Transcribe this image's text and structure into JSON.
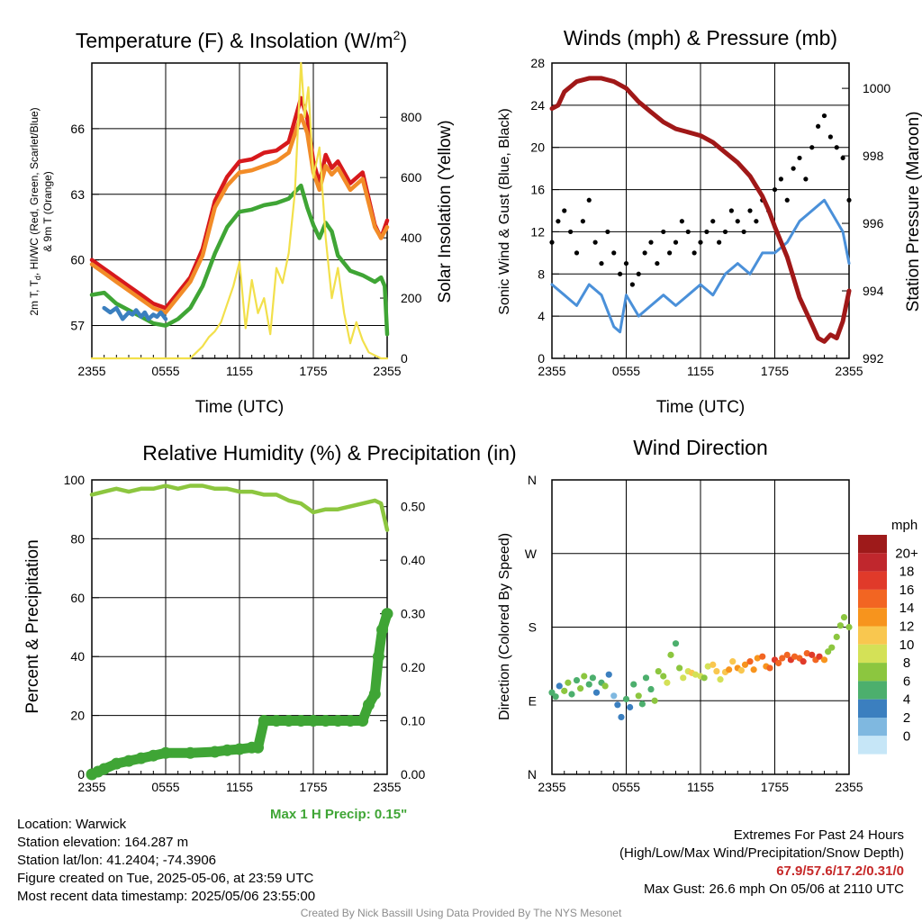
{
  "chart_data": [
    {
      "type": "line",
      "title": "Temperature (F) & Insolation (W/m",
      "title_sup": "2",
      "title_close": ")",
      "xlabel": "Time (UTC)",
      "ylabel_lines": [
        "2m T, T",
        "d",
        ", HI/WC (Red, Green, Scarlet/Blue)",
        "& 9m T (Orange)"
      ],
      "y2label": "Solar Insolation (Yellow)",
      "x_ticks": [
        "2355",
        "0555",
        "1155",
        "1755",
        "2355"
      ],
      "y_ticks": [
        57,
        60,
        63,
        66
      ],
      "ylim": [
        55.5,
        69.0
      ],
      "y2_ticks": [
        0,
        200,
        400,
        600,
        800
      ],
      "y2lim": [
        0,
        980
      ],
      "grid": true,
      "series": [
        {
          "name": "2m T",
          "color": "#d7191c",
          "axis": "left",
          "x": [
            0,
            1,
            2,
            3,
            4,
            5,
            6,
            7,
            8,
            9,
            10,
            11,
            12,
            13,
            14,
            15,
            16,
            17,
            17.5,
            18,
            18.5,
            19,
            19.5,
            20,
            21,
            22,
            23,
            23.5,
            24
          ],
          "values": [
            60.0,
            59.6,
            59.2,
            58.8,
            58.4,
            58.0,
            57.8,
            58.5,
            59.2,
            60.5,
            62.7,
            63.8,
            64.5,
            64.6,
            64.9,
            65.0,
            65.4,
            67.4,
            66.5,
            64.5,
            63.5,
            64.8,
            64.2,
            64.5,
            63.5,
            64.0,
            61.6,
            61.0,
            61.8
          ]
        },
        {
          "name": "9m T",
          "color": "#f28c28",
          "axis": "left",
          "x": [
            0,
            1,
            2,
            3,
            4,
            5,
            6,
            7,
            8,
            9,
            10,
            11,
            12,
            13,
            14,
            15,
            16,
            17,
            17.5,
            18,
            18.5,
            19,
            19.5,
            20,
            21,
            22,
            23,
            23.5,
            24
          ],
          "values": [
            59.8,
            59.4,
            59.0,
            58.6,
            58.2,
            57.8,
            57.6,
            58.3,
            59.0,
            60.2,
            62.4,
            63.4,
            64.0,
            64.1,
            64.3,
            64.5,
            64.9,
            66.6,
            65.8,
            64.0,
            63.2,
            64.3,
            63.9,
            64.2,
            63.2,
            63.7,
            61.5,
            61.0,
            61.5
          ]
        },
        {
          "name": "Td",
          "color": "#3fa535",
          "axis": "left",
          "x": [
            0,
            1,
            2,
            3,
            4,
            5,
            6,
            7,
            8,
            9,
            10,
            11,
            12,
            13,
            14,
            15,
            16,
            17,
            17.5,
            18,
            18.5,
            19,
            19.5,
            20,
            21,
            22,
            23,
            23.5,
            23.8,
            24
          ],
          "values": [
            58.4,
            58.5,
            58.0,
            57.7,
            57.4,
            57.1,
            57.0,
            57.3,
            57.8,
            58.8,
            60.3,
            61.5,
            62.2,
            62.3,
            62.5,
            62.6,
            62.8,
            63.4,
            62.4,
            61.6,
            61.0,
            61.7,
            61.3,
            60.2,
            59.5,
            59.3,
            59.0,
            59.2,
            58.8,
            56.6
          ]
        },
        {
          "name": "HI/WC",
          "color": "#3b7fbf",
          "axis": "left",
          "x": [
            1,
            1.5,
            2,
            2.5,
            3,
            3.3,
            3.6,
            4,
            4.3,
            4.6,
            5,
            5.3,
            5.6,
            6
          ],
          "values": [
            57.8,
            57.6,
            57.8,
            57.3,
            57.6,
            57.5,
            57.7,
            57.4,
            57.6,
            57.3,
            57.5,
            57.4,
            57.6,
            57.3
          ]
        },
        {
          "name": "Solar Insolation",
          "color": "#f2e04b",
          "axis": "right",
          "x": [
            0,
            8.0,
            8.5,
            9.0,
            9.5,
            10,
            10.5,
            11,
            11.5,
            12,
            12.5,
            13,
            13.5,
            14,
            14.5,
            15,
            15.5,
            16,
            16.5,
            17,
            17.3,
            17.6,
            18,
            18.5,
            19,
            19.5,
            20,
            20.5,
            21,
            21.5,
            22,
            22.5,
            23,
            23.5,
            24
          ],
          "values": [
            0,
            0,
            20,
            40,
            70,
            90,
            120,
            180,
            240,
            320,
            100,
            260,
            150,
            200,
            80,
            300,
            250,
            350,
            550,
            980,
            800,
            900,
            600,
            700,
            400,
            200,
            300,
            150,
            50,
            120,
            60,
            20,
            10,
            0,
            0
          ]
        }
      ]
    },
    {
      "type": "line",
      "title": "Winds (mph) & Pressure (mb)",
      "xlabel": "Time (UTC)",
      "ylabel": "Sonic Wind & Gust (Blue, Black)",
      "y2label": "Station Pressure (Maroon)",
      "x_ticks": [
        "2355",
        "0555",
        "1155",
        "1755",
        "2355"
      ],
      "y_ticks": [
        0,
        4,
        8,
        12,
        16,
        20,
        24,
        28
      ],
      "ylim": [
        0,
        28
      ],
      "y2_ticks": [
        992,
        994,
        996,
        998,
        1000
      ],
      "y2lim": [
        992,
        1000.75
      ],
      "grid": true,
      "series": [
        {
          "name": "Sonic Wind",
          "color": "#4a90d9",
          "axis": "left",
          "x": [
            0,
            1,
            2,
            3,
            4,
            5,
            5.5,
            6,
            7,
            8,
            9,
            10,
            11,
            12,
            13,
            14,
            15,
            16,
            17,
            18,
            19,
            20,
            21,
            22,
            23,
            23.5,
            24
          ],
          "values": [
            7,
            6,
            5,
            7,
            6,
            3,
            2.5,
            6,
            4,
            5,
            6,
            5,
            6,
            7,
            6,
            8,
            9,
            8,
            10,
            10,
            11,
            13,
            14,
            15,
            13,
            12,
            9
          ]
        },
        {
          "name": "Gust",
          "color": "#000000",
          "axis": "left",
          "x": [
            0,
            0.5,
            1,
            1.5,
            2,
            2.5,
            3,
            3.5,
            4,
            4.5,
            5,
            5.5,
            6,
            6.5,
            7,
            7.5,
            8,
            8.5,
            9,
            9.5,
            10,
            10.5,
            11,
            11.5,
            12,
            12.5,
            13,
            13.5,
            14,
            14.5,
            15,
            15.5,
            16,
            16.5,
            17,
            17.5,
            18,
            18.5,
            19,
            19.5,
            20,
            20.5,
            21,
            21.5,
            22,
            22.5,
            23,
            23.5,
            24
          ],
          "values": [
            11,
            13,
            14,
            12,
            10,
            13,
            15,
            11,
            9,
            12,
            10,
            8,
            9,
            7,
            8,
            10,
            11,
            9,
            12,
            10,
            11,
            13,
            12,
            10,
            11,
            12,
            13,
            11,
            12,
            14,
            13,
            12,
            14,
            13,
            15,
            14,
            16,
            17,
            15,
            18,
            19,
            17,
            20,
            22,
            23,
            21,
            20,
            19,
            15
          ]
        },
        {
          "name": "Station Pressure",
          "color": "#a01818",
          "axis": "right",
          "x": [
            0,
            0.5,
            1,
            2,
            3,
            4,
            5,
            6,
            7,
            8,
            9,
            10,
            11,
            12,
            13,
            14,
            15,
            16,
            17,
            17.5,
            18,
            19,
            20,
            21,
            21.5,
            22,
            22.5,
            23,
            23.5,
            24
          ],
          "values": [
            999.4,
            999.5,
            999.9,
            1000.2,
            1000.3,
            1000.3,
            1000.2,
            1000.0,
            999.6,
            999.3,
            999.0,
            998.8,
            998.7,
            998.6,
            998.4,
            998.1,
            997.8,
            997.4,
            996.8,
            996.4,
            995.9,
            995.0,
            993.8,
            993.0,
            992.6,
            992.5,
            992.7,
            992.6,
            993.1,
            994.0
          ]
        }
      ]
    },
    {
      "type": "line",
      "title": "Relative Humidity (%) & Precipitation (in)",
      "ylabel": "Percent & Precipitation",
      "x_ticks": [
        "2355",
        "0555",
        "1155",
        "1755",
        "2355"
      ],
      "y_ticks": [
        0,
        20,
        40,
        60,
        80,
        100
      ],
      "ylim": [
        0,
        100
      ],
      "y2_ticks": [
        "0.00",
        "0.10",
        "0.20",
        "0.30",
        "0.40",
        "0.50"
      ],
      "y2lim": [
        0,
        0.55
      ],
      "grid": true,
      "series": [
        {
          "name": "Relative Humidity",
          "color": "#8cc63f",
          "axis": "left",
          "x": [
            0,
            1,
            2,
            3,
            4,
            5,
            6,
            7,
            8,
            9,
            10,
            11,
            12,
            13,
            14,
            15,
            16,
            17,
            18,
            19,
            20,
            21,
            22,
            23,
            23.5,
            24
          ],
          "values": [
            95,
            96,
            97,
            96,
            97,
            97,
            98,
            97,
            98,
            98,
            97,
            97,
            96,
            96,
            95,
            95,
            93,
            92,
            89,
            90,
            90,
            91,
            92,
            93,
            92,
            83
          ]
        },
        {
          "name": "Precipitation",
          "color": "#3fa535",
          "axis": "right",
          "x": [
            0,
            0.5,
            1,
            2,
            3,
            4,
            5,
            6,
            8,
            10,
            11,
            12,
            13,
            13.5,
            14,
            15,
            16,
            17,
            18,
            19,
            20,
            21,
            22,
            22.5,
            23,
            23.3,
            23.6,
            24
          ],
          "values": [
            0,
            0.005,
            0.01,
            0.02,
            0.025,
            0.03,
            0.035,
            0.04,
            0.04,
            0.042,
            0.045,
            0.047,
            0.05,
            0.05,
            0.1,
            0.1,
            0.1,
            0.1,
            0.1,
            0.1,
            0.1,
            0.1,
            0.1,
            0.13,
            0.15,
            0.22,
            0.27,
            0.3
          ]
        }
      ]
    },
    {
      "type": "scatter",
      "title": "Wind Direction",
      "ylabel": "Direction (Colored By Speed)",
      "x_ticks": [
        "2355",
        "0555",
        "1155",
        "1755",
        "2355"
      ],
      "y_ticks": [
        "N",
        "E",
        "S",
        "W",
        "N"
      ],
      "ylim": [
        0,
        360
      ],
      "grid": true,
      "legend_title": "mph",
      "legend_labels": [
        "20+",
        "18",
        "16",
        "14",
        "12",
        "10",
        "8",
        "6",
        "4",
        "2",
        "0"
      ],
      "legend_colors": [
        "#9e1a1a",
        "#c0272d",
        "#e03a2a",
        "#f26522",
        "#f7941d",
        "#f9c74f",
        "#d4e157",
        "#8cc63f",
        "#4caf6d",
        "#3b7fbf",
        "#7fb8e0",
        "#c6e6f7"
      ],
      "series": [
        {
          "name": "Direction",
          "x": [
            0,
            0.3,
            0.6,
            1,
            1.3,
            1.6,
            2,
            2.3,
            2.6,
            3,
            3.3,
            3.6,
            4,
            4.3,
            4.6,
            5,
            5.3,
            5.6,
            6,
            6.3,
            6.6,
            7,
            7.3,
            7.6,
            8,
            8.3,
            8.6,
            9,
            9.3,
            9.6,
            10,
            10.3,
            10.6,
            11,
            11.3,
            11.6,
            12,
            12.3,
            12.6,
            13,
            13.3,
            13.6,
            14,
            14.3,
            14.6,
            15,
            15.3,
            15.6,
            16,
            16.3,
            16.6,
            17,
            17.3,
            17.6,
            18,
            18.3,
            18.6,
            19,
            19.3,
            19.6,
            20,
            20.3,
            20.6,
            21,
            21.3,
            21.6,
            22,
            22.3,
            22.6,
            23,
            23.3,
            23.6,
            24
          ],
          "values": [
            100,
            95,
            108,
            102,
            112,
            98,
            115,
            105,
            120,
            110,
            118,
            100,
            112,
            108,
            122,
            96,
            85,
            70,
            92,
            82,
            110,
            96,
            86,
            118,
            104,
            90,
            126,
            120,
            112,
            146,
            160,
            130,
            118,
            126,
            124,
            122,
            120,
            118,
            132,
            134,
            126,
            116,
            125,
            128,
            138,
            130,
            127,
            134,
            138,
            128,
            142,
            144,
            132,
            130,
            140,
            136,
            142,
            146,
            140,
            144,
            142,
            138,
            148,
            146,
            140,
            144,
            140,
            150,
            155,
            168,
            182,
            192,
            180
          ],
          "speeds": [
            6,
            5,
            4,
            7,
            8,
            6,
            5,
            7,
            8,
            6,
            5,
            4,
            6,
            7,
            3,
            2,
            3,
            4,
            5,
            4,
            6,
            7,
            5,
            6,
            5,
            8,
            7,
            8,
            9,
            7,
            6,
            8,
            9,
            10,
            11,
            10,
            9,
            8,
            10,
            12,
            11,
            10,
            12,
            13,
            11,
            14,
            12,
            13,
            15,
            14,
            13,
            16,
            14,
            15,
            17,
            15,
            16,
            16,
            17,
            15,
            16,
            17,
            15,
            18,
            16,
            17,
            14,
            8,
            7,
            7,
            8,
            7,
            7
          ]
        }
      ]
    }
  ],
  "max_precip_label": "Max 1 H Precip: 0.15\"",
  "info": {
    "location": "Location: Warwick",
    "elevation": "Station elevation: 164.287 m",
    "latlon": "Station lat/lon: 41.2404; -74.3906",
    "created": "Figure created on Tue, 2025-05-06, at 23:59 UTC",
    "recent": "Most recent data timestamp: 2025/05/06 23:55:00"
  },
  "extremes": {
    "heading": "Extremes For Past 24 Hours",
    "subheading": "(High/Low/Max Wind/Precipitation/Snow Depth)",
    "values": "67.9/57.6/17.2/0.31/0",
    "max_gust": "Max Gust: 26.6 mph On 05/06 at 2110 UTC"
  },
  "credit": "Created By Nick Bassill Using Data Provided By The NYS Mesonet"
}
